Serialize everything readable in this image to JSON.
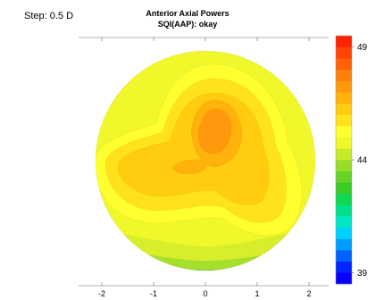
{
  "header": {
    "step_label": "Step: 0.5 D",
    "title": "Anterior Axial Powers",
    "subtitle": "SQI(AAP): okay"
  },
  "chart_data": {
    "type": "heatmap",
    "title": "Anterior Axial Powers",
    "subtitle": "SQI(AAP): okay",
    "x_ticks": [
      -2,
      -1,
      0,
      1,
      2
    ],
    "x_tick_labels": [
      "-2",
      "-1",
      "0",
      "1",
      "2"
    ],
    "colorbar": {
      "range": [
        38.5,
        49.5
      ],
      "step": 0.5,
      "tick_values": [
        49,
        44,
        39
      ],
      "tick_labels": [
        "49",
        "44",
        "39"
      ],
      "colors": [
        "#0a00ff",
        "#0026ff",
        "#0062ff",
        "#009cff",
        "#00d2ff",
        "#00e6c8",
        "#00e08a",
        "#10d850",
        "#3ccc28",
        "#66d22a",
        "#96dc2a",
        "#c8ea28",
        "#f0f72a",
        "#ffff30",
        "#ffe21c",
        "#ffcc10",
        "#ffb10c",
        "#ff980a",
        "#ff7f08",
        "#ff6206",
        "#ff4404",
        "#ff2200"
      ]
    },
    "zones": [
      {
        "power": 45.5,
        "color": "#f0f72a"
      },
      {
        "power": 46.0,
        "color": "#ffff30"
      },
      {
        "power": 46.5,
        "color": "#ffe21c"
      },
      {
        "power": 47.0,
        "color": "#ffcc10"
      },
      {
        "power": 47.5,
        "color": "#ffb10c"
      },
      {
        "power": 48.0,
        "color": "#ff980a"
      }
    ],
    "grid": false
  }
}
